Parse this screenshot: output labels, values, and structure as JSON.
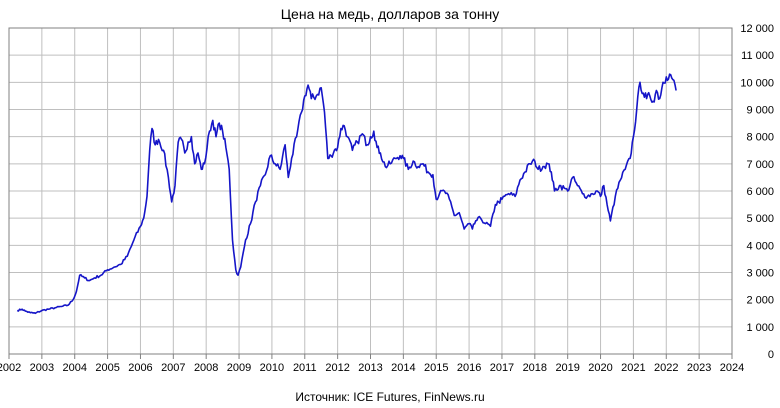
{
  "chart_data": {
    "type": "line",
    "title": "Цена на медь, долларов за тонну",
    "source": "Источник: ICE Futures, FinNews.ru",
    "xlabel": "",
    "ylabel": "",
    "xlim": [
      2002,
      2024
    ],
    "ylim": [
      0,
      12000
    ],
    "x_ticks": [
      "2002",
      "2003",
      "2004",
      "2005",
      "2006",
      "2007",
      "2008",
      "2009",
      "2010",
      "2011",
      "2012",
      "2013",
      "2014",
      "2015",
      "2016",
      "2017",
      "2018",
      "2019",
      "2020",
      "2021",
      "2022",
      "2023",
      "2024"
    ],
    "y_ticks": [
      "0",
      "1 000",
      "2 000",
      "3 000",
      "4 000",
      "5 000",
      "6 000",
      "7 000",
      "8 000",
      "9 000",
      "10 000",
      "11 000",
      "12 000"
    ],
    "grid": true,
    "line_color": "#1515C8",
    "series": [
      {
        "x": [
          2002.25,
          2002.4,
          2002.5,
          2002.65,
          2002.8,
          2003.0,
          2003.2,
          2003.4,
          2003.6,
          2003.8,
          2003.95,
          2004.05,
          2004.15,
          2004.3,
          2004.45,
          2004.6,
          2004.8,
          2005.0,
          2005.2,
          2005.4,
          2005.6,
          2005.8,
          2006.0,
          2006.1,
          2006.2,
          2006.28,
          2006.35,
          2006.45,
          2006.55,
          2006.7,
          2006.85,
          2006.95,
          2007.05,
          2007.15,
          2007.25,
          2007.35,
          2007.45,
          2007.55,
          2007.65,
          2007.75,
          2007.85,
          2007.95,
          2008.1,
          2008.2,
          2008.3,
          2008.4,
          2008.5,
          2008.6,
          2008.7,
          2008.8,
          2008.9,
          2008.97,
          2009.05,
          2009.2,
          2009.35,
          2009.5,
          2009.65,
          2009.8,
          2009.95,
          2010.1,
          2010.25,
          2010.4,
          2010.5,
          2010.6,
          2010.75,
          2010.9,
          2011.0,
          2011.1,
          2011.2,
          2011.35,
          2011.5,
          2011.6,
          2011.7,
          2011.8,
          2011.9,
          2012.0,
          2012.1,
          2012.2,
          2012.3,
          2012.45,
          2012.6,
          2012.75,
          2012.9,
          2013.0,
          2013.1,
          2013.2,
          2013.3,
          2013.45,
          2013.6,
          2013.75,
          2013.9,
          2014.0,
          2014.15,
          2014.3,
          2014.45,
          2014.6,
          2014.75,
          2014.9,
          2015.0,
          2015.1,
          2015.25,
          2015.4,
          2015.55,
          2015.7,
          2015.85,
          2016.0,
          2016.1,
          2016.2,
          2016.35,
          2016.5,
          2016.65,
          2016.8,
          2016.9,
          2017.0,
          2017.2,
          2017.4,
          2017.55,
          2017.7,
          2017.85,
          2018.0,
          2018.1,
          2018.25,
          2018.4,
          2018.5,
          2018.6,
          2018.75,
          2018.9,
          2019.0,
          2019.15,
          2019.3,
          2019.45,
          2019.6,
          2019.75,
          2019.9,
          2020.0,
          2020.1,
          2020.2,
          2020.3,
          2020.45,
          2020.6,
          2020.75,
          2020.9,
          2021.0,
          2021.1,
          2021.2,
          2021.3,
          2021.4,
          2021.5,
          2021.6,
          2021.7,
          2021.8,
          2021.9,
          2022.0,
          2022.1,
          2022.2,
          2022.3
        ],
        "y": [
          1600,
          1650,
          1580,
          1520,
          1500,
          1600,
          1650,
          1700,
          1750,
          1800,
          2000,
          2300,
          2900,
          2800,
          2700,
          2800,
          2900,
          3100,
          3200,
          3300,
          3600,
          4200,
          4700,
          5000,
          5800,
          7500,
          8300,
          7700,
          7900,
          7500,
          6500,
          5600,
          6200,
          7800,
          7900,
          7400,
          7800,
          8000,
          7000,
          7400,
          6800,
          7000,
          8200,
          8600,
          8000,
          8500,
          8200,
          7600,
          6800,
          4200,
          3100,
          2900,
          3200,
          4200,
          4800,
          5600,
          6200,
          6600,
          7300,
          7000,
          6800,
          7700,
          6500,
          7200,
          8000,
          8900,
          9500,
          9900,
          9400,
          9500,
          9800,
          8900,
          7200,
          7300,
          7500,
          7600,
          8300,
          8400,
          8000,
          7500,
          7800,
          8100,
          7700,
          8000,
          8200,
          7600,
          7400,
          6900,
          7000,
          7200,
          7300,
          7200,
          6800,
          7100,
          6900,
          7000,
          6700,
          6600,
          5700,
          5900,
          6000,
          5700,
          5100,
          5200,
          4600,
          4800,
          4600,
          4900,
          5000,
          4800,
          4700,
          5500,
          5600,
          5700,
          5900,
          5800,
          6400,
          6700,
          7000,
          7100,
          6800,
          6900,
          7000,
          6700,
          6000,
          6200,
          6100,
          6000,
          6500,
          6200,
          5900,
          5800,
          5900,
          6000,
          5800,
          6200,
          5500,
          4900,
          5800,
          6400,
          6800,
          7200,
          8000,
          9000,
          10000,
          9600,
          9400,
          9500,
          9300,
          9700,
          9400,
          10000,
          10200,
          10300,
          10100,
          9700
        ]
      }
    ]
  }
}
